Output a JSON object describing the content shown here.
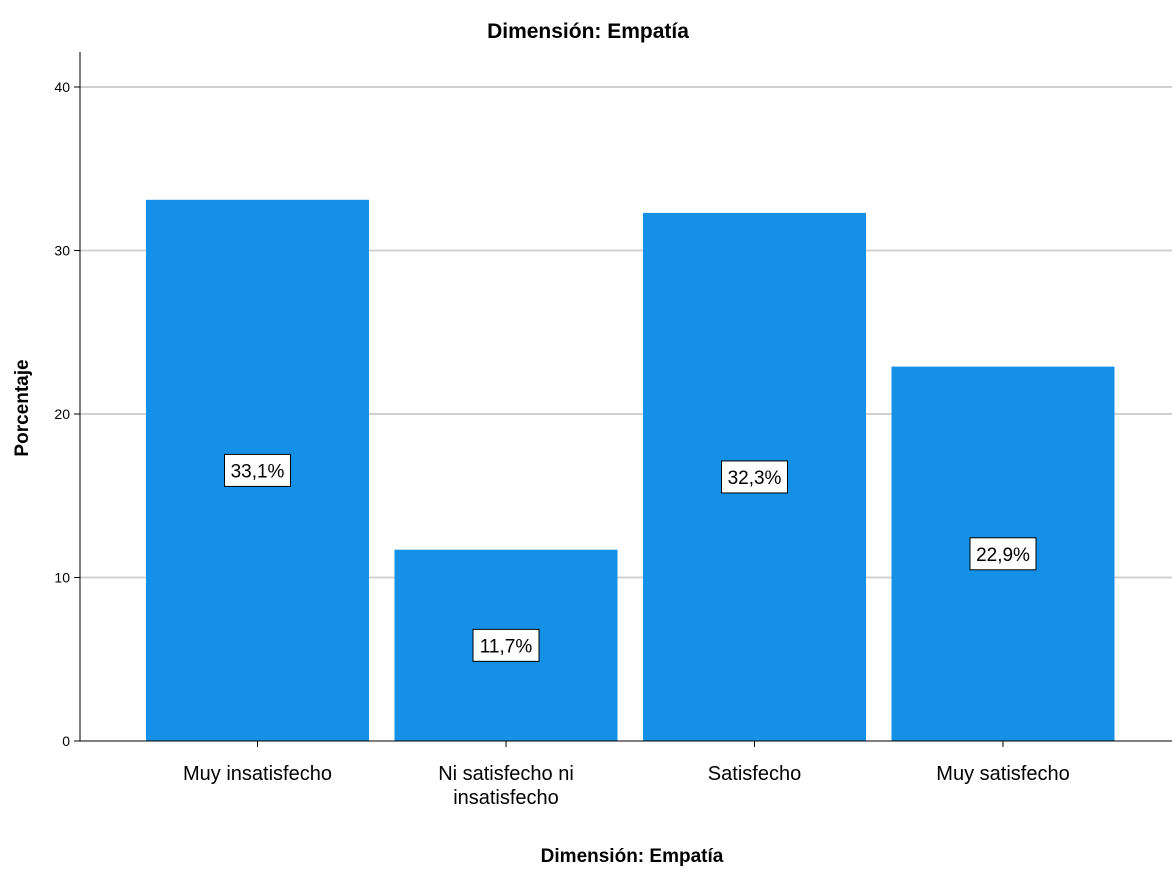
{
  "chart_data": {
    "type": "bar",
    "title": "Dimensión: Empatía",
    "xlabel": "Dimensión: Empatía",
    "ylabel": "Porcentaje",
    "categories": [
      [
        "Muy insatisfecho"
      ],
      [
        "Ni satisfecho ni",
        "insatisfecho"
      ],
      [
        "Satisfecho"
      ],
      [
        "Muy satisfecho"
      ]
    ],
    "values": [
      33.1,
      11.7,
      32.3,
      22.9
    ],
    "data_labels": [
      "33,1%",
      "11,7%",
      "32,3%",
      "22,9%"
    ],
    "ylim": [
      0,
      40
    ],
    "yticks": [
      0,
      10,
      20,
      30,
      40
    ],
    "grid": true,
    "colors": {
      "bar": "#1491e6",
      "grid": "#d0d0d0",
      "axis": "#000000"
    }
  }
}
